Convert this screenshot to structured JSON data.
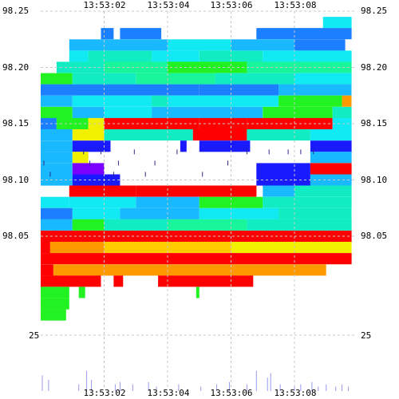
{
  "chart_data": {
    "type": "heatmap",
    "title": "",
    "xlabel": "",
    "ylabel": "",
    "grid": true,
    "x_ticks": [
      "13:53:02",
      "13:53:04",
      "13:53:06",
      "13:53:08"
    ],
    "y_ticks": [
      "98.25",
      "98.20",
      "98.15",
      "98.10",
      "98.05"
    ],
    "volume_axis_label": "25",
    "x_range_seconds": [
      0.0,
      9.8
    ],
    "x_tick_seconds": [
      2,
      4,
      6,
      8
    ],
    "y_range": [
      97.985,
      98.25
    ],
    "colors": {
      "dark_blue": "#1a1aff",
      "blue": "#1b7fff",
      "light_blue": "#19b9ff",
      "cyan": "#11e9f3",
      "aqua": "#11ecc3",
      "sea_green": "#19f59a",
      "green": "#22f222",
      "yellow": "#f0f000",
      "gold": "#ffcc00",
      "orange": "#ff9900",
      "red": "#ff0000",
      "purple": "#7a00ff",
      "volume": "#9999ee"
    },
    "price_step": 0.01,
    "levels": [
      {
        "price": 98.24,
        "segments": [
          [
            8.9,
            9.8,
            "cyan"
          ]
        ]
      },
      {
        "price": 98.23,
        "segments": [
          [
            1.9,
            2.3,
            "blue"
          ],
          [
            2.5,
            3.8,
            "blue"
          ],
          [
            6.8,
            9.8,
            "blue"
          ]
        ]
      },
      {
        "price": 98.22,
        "segments": [
          [
            0.9,
            2.2,
            "light_blue"
          ],
          [
            2.2,
            4.0,
            "light_blue"
          ],
          [
            4.0,
            6.0,
            "cyan"
          ],
          [
            6.0,
            8.0,
            "light_blue"
          ],
          [
            8.0,
            9.6,
            "blue"
          ]
        ]
      },
      {
        "price": 98.21,
        "segments": [
          [
            0.9,
            1.5,
            "cyan"
          ],
          [
            1.5,
            3.5,
            "aqua"
          ],
          [
            3.5,
            5.0,
            "cyan"
          ],
          [
            5.0,
            7.0,
            "aqua"
          ],
          [
            7.0,
            9.8,
            "cyan"
          ]
        ]
      },
      {
        "price": 98.2,
        "segments": [
          [
            0.5,
            2.0,
            "aqua"
          ],
          [
            2.0,
            4.0,
            "sea_green"
          ],
          [
            4.0,
            6.5,
            "green"
          ],
          [
            6.5,
            9.8,
            "sea_green"
          ]
        ]
      },
      {
        "price": 98.19,
        "segments": [
          [
            0.0,
            1.0,
            "green"
          ],
          [
            1.0,
            3.0,
            "aqua"
          ],
          [
            3.0,
            5.5,
            "sea_green"
          ],
          [
            5.5,
            8.0,
            "aqua"
          ],
          [
            8.0,
            9.8,
            "cyan"
          ]
        ]
      },
      {
        "price": 98.18,
        "segments": [
          [
            0.0,
            2.0,
            "blue"
          ],
          [
            2.0,
            5.0,
            "blue"
          ],
          [
            5.0,
            7.5,
            "blue"
          ],
          [
            7.5,
            9.8,
            "light_blue"
          ]
        ]
      },
      {
        "price": 98.17,
        "segments": [
          [
            0.0,
            1.0,
            "light_blue"
          ],
          [
            1.0,
            3.5,
            "cyan"
          ],
          [
            3.5,
            4.0,
            "aqua"
          ],
          [
            4.0,
            7.5,
            "cyan"
          ],
          [
            7.5,
            9.5,
            "green"
          ],
          [
            9.5,
            9.8,
            "orange"
          ]
        ]
      },
      {
        "price": 98.16,
        "segments": [
          [
            0.0,
            1.0,
            "green"
          ],
          [
            1.0,
            2.0,
            "light_blue"
          ],
          [
            2.0,
            3.5,
            "cyan"
          ],
          [
            3.5,
            7.0,
            "light_blue"
          ],
          [
            7.0,
            9.2,
            "green"
          ],
          [
            9.2,
            9.8,
            "aqua"
          ]
        ]
      },
      {
        "price": 98.15,
        "segments": [
          [
            0.0,
            0.5,
            "blue"
          ],
          [
            0.5,
            1.5,
            "green"
          ],
          [
            1.5,
            2.0,
            "yellow"
          ],
          [
            2.0,
            4.0,
            "red"
          ],
          [
            4.0,
            5.0,
            "red"
          ],
          [
            5.0,
            6.5,
            "red"
          ],
          [
            6.5,
            9.2,
            "red"
          ],
          [
            9.2,
            9.8,
            "cyan"
          ]
        ]
      },
      {
        "price": 98.14,
        "segments": [
          [
            0.0,
            1.0,
            "light_blue"
          ],
          [
            1.0,
            2.0,
            "yellow"
          ],
          [
            2.0,
            4.8,
            "aqua"
          ],
          [
            4.8,
            6.5,
            "red"
          ],
          [
            6.5,
            8.5,
            "aqua"
          ],
          [
            8.5,
            9.8,
            "cyan"
          ]
        ]
      },
      {
        "price": 98.13,
        "segments": [
          [
            0.0,
            1.0,
            "light_blue"
          ],
          [
            1.0,
            2.2,
            "dark_blue"
          ],
          [
            4.4,
            4.6,
            "dark_blue"
          ],
          [
            5.0,
            6.6,
            "dark_blue"
          ],
          [
            8.5,
            9.8,
            "dark_blue"
          ]
        ]
      },
      {
        "price": 98.12,
        "segments": [
          [
            0.0,
            1.0,
            "light_blue"
          ],
          [
            1.0,
            1.5,
            "yellow"
          ],
          [
            8.5,
            9.8,
            "light_blue"
          ]
        ]
      },
      {
        "price": 98.11,
        "segments": [
          [
            0.0,
            1.0,
            "light_blue"
          ],
          [
            1.0,
            2.0,
            "purple"
          ],
          [
            6.8,
            8.5,
            "dark_blue"
          ],
          [
            8.5,
            9.8,
            "red"
          ]
        ]
      },
      {
        "price": 98.1,
        "segments": [
          [
            0.0,
            1.0,
            "light_blue"
          ],
          [
            1.0,
            2.5,
            "dark_blue"
          ],
          [
            6.8,
            8.5,
            "dark_blue"
          ],
          [
            8.5,
            9.8,
            "light_blue"
          ]
        ]
      },
      {
        "price": 98.09,
        "segments": [
          [
            0.9,
            3.0,
            "red"
          ],
          [
            3.0,
            6.8,
            "red"
          ],
          [
            7.0,
            8.0,
            "light_blue"
          ],
          [
            8.0,
            9.8,
            "aqua"
          ]
        ]
      },
      {
        "price": 98.08,
        "segments": [
          [
            0.0,
            0.9,
            "cyan"
          ],
          [
            0.9,
            3.0,
            "cyan"
          ],
          [
            3.0,
            5.0,
            "light_blue"
          ],
          [
            5.0,
            7.0,
            "green"
          ],
          [
            7.0,
            9.8,
            "aqua"
          ]
        ]
      },
      {
        "price": 98.07,
        "segments": [
          [
            0.0,
            1.0,
            "blue"
          ],
          [
            1.0,
            2.5,
            "cyan"
          ],
          [
            2.5,
            5.0,
            "light_blue"
          ],
          [
            5.0,
            7.5,
            "cyan"
          ],
          [
            7.5,
            9.8,
            "aqua"
          ]
        ]
      },
      {
        "price": 98.06,
        "segments": [
          [
            0.0,
            1.0,
            "light_blue"
          ],
          [
            1.0,
            2.0,
            "green"
          ],
          [
            2.0,
            4.0,
            "aqua"
          ],
          [
            4.0,
            6.5,
            "sea_green"
          ],
          [
            6.5,
            9.8,
            "aqua"
          ]
        ]
      },
      {
        "price": 98.05,
        "segments": [
          [
            0.0,
            9.8,
            "red"
          ]
        ]
      },
      {
        "price": 98.04,
        "segments": [
          [
            0.0,
            0.3,
            "red"
          ],
          [
            0.3,
            2.0,
            "orange"
          ],
          [
            2.0,
            6.0,
            "gold"
          ],
          [
            6.0,
            9.8,
            "yellow"
          ]
        ]
      },
      {
        "price": 98.03,
        "segments": [
          [
            0.0,
            9.8,
            "red"
          ]
        ]
      },
      {
        "price": 98.02,
        "segments": [
          [
            0.0,
            0.4,
            "red"
          ],
          [
            0.4,
            1.8,
            "orange"
          ],
          [
            1.8,
            9.0,
            "orange"
          ]
        ]
      },
      {
        "price": 98.01,
        "segments": [
          [
            0.0,
            1.9,
            "red"
          ],
          [
            2.3,
            2.6,
            "red"
          ],
          [
            3.7,
            6.7,
            "red"
          ]
        ]
      },
      {
        "price": 98.0,
        "segments": [
          [
            0.0,
            0.9,
            "green"
          ],
          [
            1.2,
            1.4,
            "green"
          ],
          [
            4.9,
            5.0,
            "green"
          ]
        ]
      },
      {
        "price": 97.99,
        "segments": [
          [
            0.0,
            0.9,
            "green"
          ]
        ]
      },
      {
        "price": 97.98,
        "segments": [
          [
            0.0,
            0.8,
            "green"
          ]
        ]
      }
    ],
    "trades": [
      {
        "t": 0.1,
        "price": 98.115
      },
      {
        "t": 0.3,
        "price": 98.105
      },
      {
        "t": 1.35,
        "price": 98.125
      },
      {
        "t": 1.55,
        "price": 98.115
      },
      {
        "t": 1.9,
        "price": 98.125
      },
      {
        "t": 2.3,
        "price": 98.105
      },
      {
        "t": 2.45,
        "price": 98.115
      },
      {
        "t": 2.95,
        "price": 98.125
      },
      {
        "t": 3.3,
        "price": 98.105
      },
      {
        "t": 3.6,
        "price": 98.115
      },
      {
        "t": 4.3,
        "price": 98.125
      },
      {
        "t": 5.1,
        "price": 98.105
      },
      {
        "t": 5.9,
        "price": 98.115
      },
      {
        "t": 6.5,
        "price": 98.125
      },
      {
        "t": 7.2,
        "price": 98.125
      },
      {
        "t": 7.8,
        "price": 98.125
      },
      {
        "t": 8.2,
        "price": 98.125
      },
      {
        "t": 8.6,
        "price": 98.125
      }
    ],
    "volume": [
      {
        "t": 0.05,
        "v": 7
      },
      {
        "t": 0.25,
        "v": 5
      },
      {
        "t": 1.2,
        "v": 3
      },
      {
        "t": 1.45,
        "v": 9
      },
      {
        "t": 1.6,
        "v": 5
      },
      {
        "t": 2.35,
        "v": 3
      },
      {
        "t": 2.5,
        "v": 4
      },
      {
        "t": 2.9,
        "v": 3
      },
      {
        "t": 3.4,
        "v": 4
      },
      {
        "t": 3.65,
        "v": 2
      },
      {
        "t": 4.35,
        "v": 3
      },
      {
        "t": 5.05,
        "v": 2
      },
      {
        "t": 5.55,
        "v": 3
      },
      {
        "t": 5.95,
        "v": 4
      },
      {
        "t": 6.5,
        "v": 3
      },
      {
        "t": 6.8,
        "v": 9
      },
      {
        "t": 7.15,
        "v": 6
      },
      {
        "t": 7.25,
        "v": 8
      },
      {
        "t": 7.55,
        "v": 3
      },
      {
        "t": 8.0,
        "v": 2
      },
      {
        "t": 8.2,
        "v": 3
      },
      {
        "t": 8.55,
        "v": 4
      },
      {
        "t": 8.75,
        "v": 2
      },
      {
        "t": 9.0,
        "v": 3
      },
      {
        "t": 9.3,
        "v": 2
      },
      {
        "t": 9.5,
        "v": 3
      },
      {
        "t": 9.7,
        "v": 2
      }
    ],
    "volume_max": 25
  }
}
